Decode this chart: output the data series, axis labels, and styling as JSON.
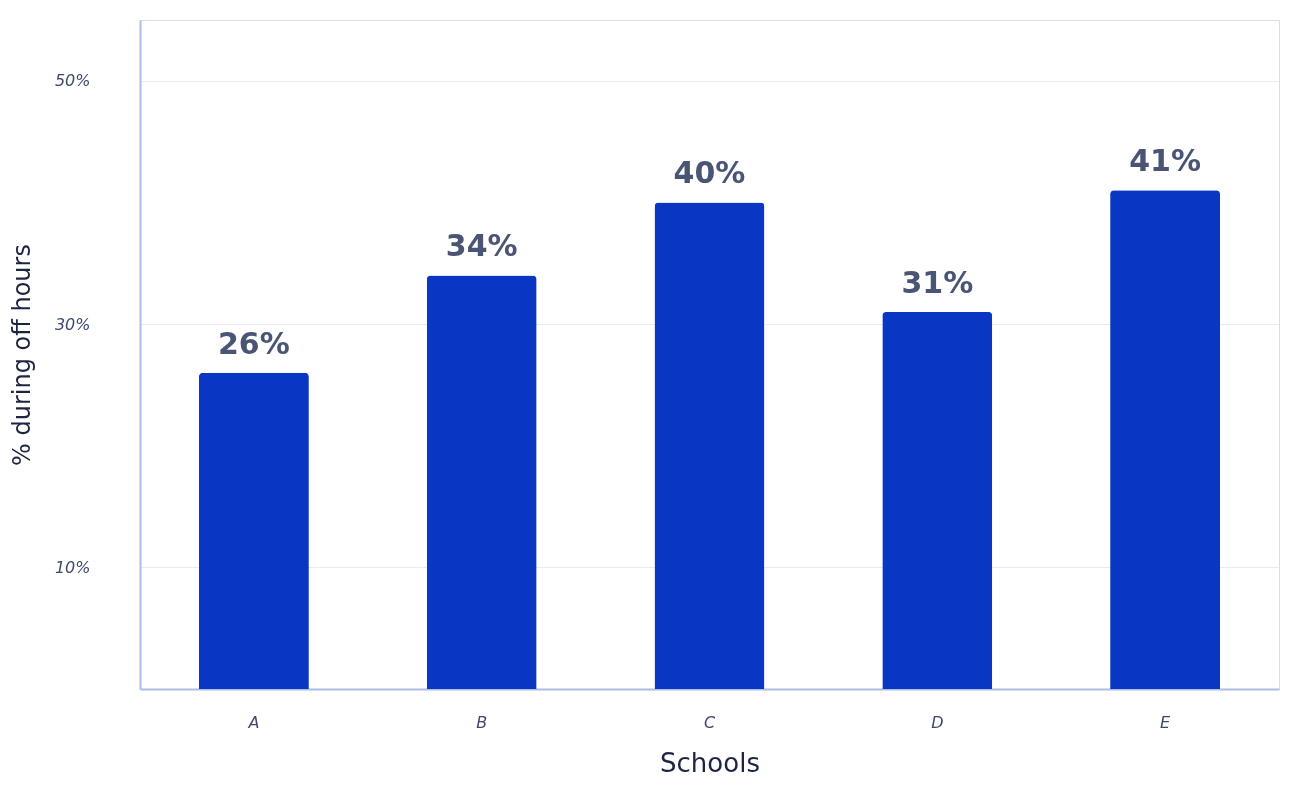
{
  "chart_data": {
    "type": "bar",
    "categories": [
      "A",
      "B",
      "C",
      "D",
      "E"
    ],
    "values": [
      26,
      34,
      40,
      31,
      41
    ],
    "value_labels": [
      "26%",
      "34%",
      "40%",
      "31%",
      "41%"
    ],
    "color": "#0a36c4",
    "xlabel": "Schools",
    "ylabel": "% during off hours",
    "ylim": [
      0,
      55
    ],
    "yticks": [
      {
        "value": 10,
        "label": "10%"
      },
      {
        "value": 30,
        "label": "30%"
      },
      {
        "value": 50,
        "label": "50%"
      }
    ],
    "grid": "y"
  }
}
